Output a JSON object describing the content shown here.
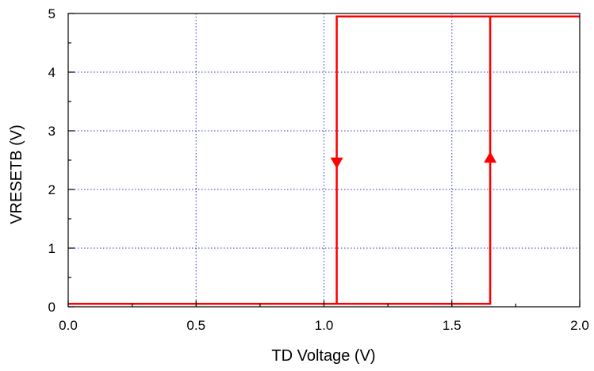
{
  "chart_data": {
    "type": "line",
    "title": "",
    "xlabel": "TD Voltage (V)",
    "ylabel": "VRESETB (V)",
    "xlim": [
      0,
      2.0
    ],
    "ylim": [
      0,
      5
    ],
    "x_ticks": [
      "0.0",
      "0.5",
      "1.0",
      "1.5",
      "2.0"
    ],
    "y_ticks": [
      "0",
      "1",
      "2",
      "3",
      "4",
      "5"
    ],
    "x_tick_values": [
      0,
      0.5,
      1.0,
      1.5,
      2.0
    ],
    "y_tick_values": [
      0,
      1,
      2,
      3,
      4,
      5
    ],
    "grid": true,
    "grid_style": "dotted",
    "grid_color": "#3333cc",
    "line_color": "#ff0000",
    "series": [
      {
        "direction": "down",
        "x": [
          2.0,
          1.05,
          1.05,
          0.0
        ],
        "y": [
          4.95,
          4.95,
          0.05,
          0.05
        ]
      },
      {
        "direction": "up",
        "x": [
          0.0,
          1.65,
          1.65,
          2.0
        ],
        "y": [
          0.05,
          0.05,
          4.95,
          4.95
        ]
      }
    ],
    "markers": [
      {
        "shape": "triangle-down",
        "x": 1.05,
        "y": 2.45
      },
      {
        "shape": "triangle-up",
        "x": 1.65,
        "y": 2.55
      }
    ]
  }
}
